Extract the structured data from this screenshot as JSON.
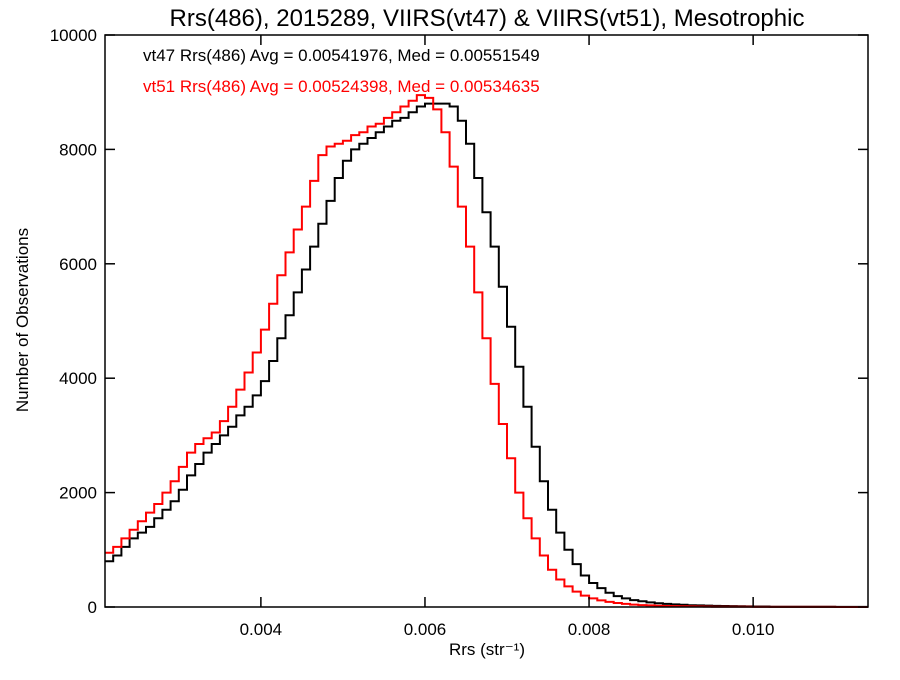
{
  "chart_data": {
    "type": "line",
    "step": true,
    "title": "Rrs(486), 2015289, VIIRS(vt47) & VIIRS(vt51), Mesotrophic",
    "xlabel": "Rrs (str⁻¹)",
    "ylabel": "Number of Observations",
    "xlim": [
      0.0021,
      0.0114
    ],
    "ylim": [
      0,
      10000
    ],
    "grid": false,
    "x_ticks": [
      {
        "value": 0.004,
        "label": "0.004"
      },
      {
        "value": 0.006,
        "label": "0.006"
      },
      {
        "value": 0.008,
        "label": "0.008"
      },
      {
        "value": 0.01,
        "label": "0.010"
      }
    ],
    "y_ticks": [
      {
        "value": 0,
        "label": "0"
      },
      {
        "value": 2000,
        "label": "2000"
      },
      {
        "value": 4000,
        "label": "4000"
      },
      {
        "value": 6000,
        "label": "6000"
      },
      {
        "value": 8000,
        "label": "8000"
      },
      {
        "value": 10000,
        "label": "10000"
      }
    ],
    "annotations": [
      {
        "text": "vt47 Rrs(486) Avg = 0.00541976, Med = 0.00551549",
        "color": "#000000"
      },
      {
        "text": "vt51 Rrs(486) Avg = 0.00524398, Med = 0.00534635",
        "color": "#ff0000"
      }
    ],
    "series": [
      {
        "color": "#000000",
        "x": [
          0.0021,
          0.0022,
          0.0023,
          0.0024,
          0.0025,
          0.0026,
          0.0027,
          0.0028,
          0.0029,
          0.003,
          0.0031,
          0.0032,
          0.0033,
          0.0034,
          0.0035,
          0.0036,
          0.0037,
          0.0038,
          0.0039,
          0.004,
          0.0041,
          0.0042,
          0.0043,
          0.0044,
          0.0045,
          0.0046,
          0.0047,
          0.0048,
          0.0049,
          0.005,
          0.0051,
          0.0052,
          0.0053,
          0.0054,
          0.0055,
          0.0056,
          0.0057,
          0.0058,
          0.0059,
          0.006,
          0.0061,
          0.0062,
          0.0063,
          0.0064,
          0.0065,
          0.0066,
          0.0067,
          0.0068,
          0.0069,
          0.007,
          0.0071,
          0.0072,
          0.0073,
          0.0074,
          0.0075,
          0.0076,
          0.0077,
          0.0078,
          0.0079,
          0.008,
          0.0081,
          0.0082,
          0.0083,
          0.0084,
          0.0085,
          0.0086,
          0.0087,
          0.0088,
          0.0089,
          0.009,
          0.0091,
          0.0092,
          0.0093,
          0.0094,
          0.0095,
          0.0096,
          0.0097,
          0.0098,
          0.0099,
          0.01,
          0.0102,
          0.0104,
          0.0106,
          0.0108,
          0.011,
          0.0112,
          0.0114
        ],
        "y": [
          800,
          900,
          1050,
          1200,
          1300,
          1400,
          1550,
          1700,
          1850,
          2050,
          2300,
          2500,
          2700,
          2850,
          3000,
          3150,
          3350,
          3500,
          3700,
          3950,
          4300,
          4700,
          5100,
          5500,
          5900,
          6300,
          6700,
          7100,
          7500,
          7800,
          8000,
          8100,
          8200,
          8300,
          8400,
          8500,
          8550,
          8650,
          8750,
          8800,
          8800,
          8800,
          8750,
          8500,
          8100,
          7500,
          6900,
          6300,
          5600,
          4900,
          4200,
          3500,
          2800,
          2200,
          1700,
          1300,
          1000,
          750,
          550,
          420,
          330,
          250,
          190,
          150,
          120,
          100,
          80,
          65,
          55,
          45,
          38,
          32,
          28,
          24,
          20,
          17,
          15,
          12,
          10,
          8,
          6,
          5,
          4,
          3,
          2,
          1,
          1
        ]
      },
      {
        "color": "#ff0000",
        "x": [
          0.0021,
          0.0022,
          0.0023,
          0.0024,
          0.0025,
          0.0026,
          0.0027,
          0.0028,
          0.0029,
          0.003,
          0.0031,
          0.0032,
          0.0033,
          0.0034,
          0.0035,
          0.0036,
          0.0037,
          0.0038,
          0.0039,
          0.004,
          0.0041,
          0.0042,
          0.0043,
          0.0044,
          0.0045,
          0.0046,
          0.0047,
          0.0048,
          0.0049,
          0.005,
          0.0051,
          0.0052,
          0.0053,
          0.0054,
          0.0055,
          0.0056,
          0.0057,
          0.0058,
          0.0059,
          0.006,
          0.0061,
          0.0062,
          0.0063,
          0.0064,
          0.0065,
          0.0066,
          0.0067,
          0.0068,
          0.0069,
          0.007,
          0.0071,
          0.0072,
          0.0073,
          0.0074,
          0.0075,
          0.0076,
          0.0077,
          0.0078,
          0.0079,
          0.008,
          0.0081,
          0.0082,
          0.0083,
          0.0084,
          0.0085,
          0.0086,
          0.0087,
          0.0088,
          0.0089,
          0.009,
          0.0091,
          0.0092,
          0.0093,
          0.0094,
          0.0095,
          0.0096,
          0.0097,
          0.0098,
          0.0099,
          0.01,
          0.0102,
          0.0104,
          0.0106,
          0.0108,
          0.011,
          0.0112,
          0.0114
        ],
        "y": [
          950,
          1050,
          1200,
          1350,
          1500,
          1650,
          1800,
          2000,
          2200,
          2450,
          2700,
          2850,
          2950,
          3050,
          3250,
          3500,
          3800,
          4100,
          4450,
          4850,
          5300,
          5800,
          6200,
          6600,
          7000,
          7450,
          7900,
          8050,
          8100,
          8150,
          8250,
          8300,
          8400,
          8450,
          8550,
          8650,
          8750,
          8850,
          8950,
          8900,
          8700,
          8300,
          7700,
          7000,
          6300,
          5500,
          4700,
          3900,
          3200,
          2600,
          2000,
          1550,
          1200,
          900,
          650,
          480,
          360,
          270,
          200,
          150,
          115,
          90,
          70,
          55,
          42,
          34,
          28,
          22,
          18,
          15,
          12,
          10,
          8,
          7,
          6,
          5,
          4,
          3,
          3,
          2,
          2,
          1,
          1,
          1,
          0,
          0,
          0
        ]
      }
    ]
  }
}
